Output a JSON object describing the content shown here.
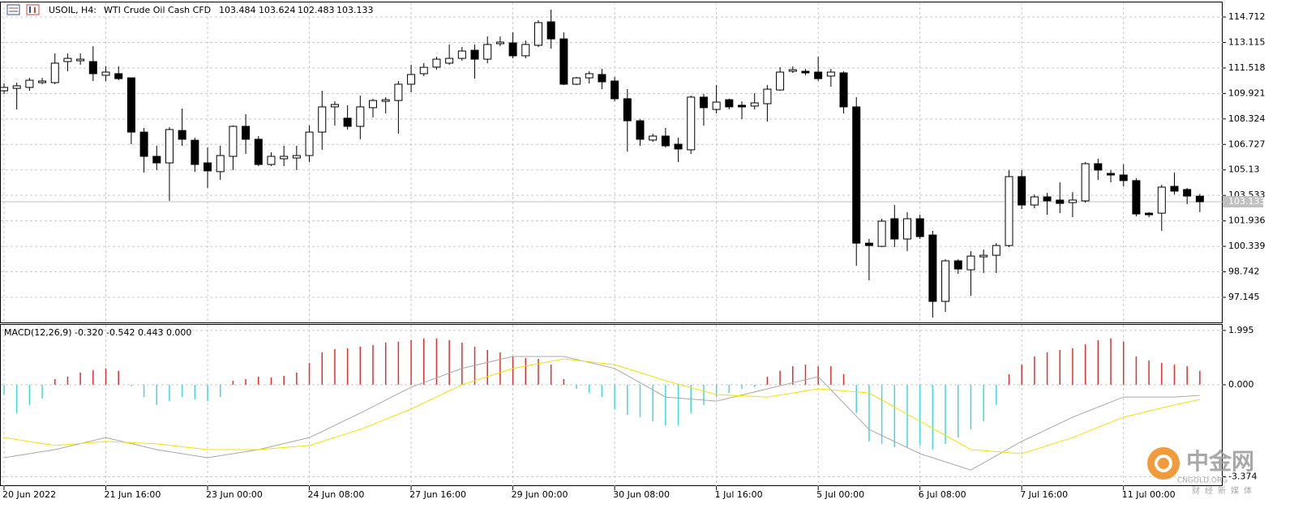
{
  "chart_data": [
    {
      "type": "candlestick",
      "symbol": "USOIL, H4:",
      "description": "WTI Crude Oil Cash CFD",
      "ylim": [
        95.571,
        115.626
      ],
      "yticks": [
        114.712,
        113.115,
        111.518,
        109.921,
        108.324,
        106.727,
        105.13,
        103.533,
        101.936,
        100.339,
        98.742,
        97.145
      ],
      "grid": true,
      "up_color": "#ffffff",
      "down_color": "#000000",
      "outline_color": "#000000",
      "last_price_line": true,
      "last_price_color": "#c0c0c0",
      "xticks": [
        {
          "value": 0,
          "label": "20 Jun 2022"
        },
        {
          "value": 8,
          "label": "21 Jun 16:00"
        },
        {
          "value": 16,
          "label": "23 Jun 00:00"
        },
        {
          "value": 24,
          "label": "24 Jun 08:00"
        },
        {
          "value": 32,
          "label": "27 Jun 16:00"
        },
        {
          "value": 40,
          "label": "29 Jun 00:00"
        },
        {
          "value": 48,
          "label": "30 Jun 08:00"
        },
        {
          "value": 56,
          "label": "1 Jul 16:00"
        },
        {
          "value": 64,
          "label": "5 Jul 00:00"
        },
        {
          "value": 72,
          "label": "6 Jul 08:00"
        },
        {
          "value": 80,
          "label": "7 Jul 16:00"
        },
        {
          "value": 88,
          "label": "11 Jul 00:00"
        }
      ],
      "open": [
        110.09,
        110.24,
        110.3,
        110.6,
        110.6,
        111.92,
        111.97,
        111.92,
        111.06,
        111.16,
        110.9,
        107.5,
        105.98,
        105.57,
        107.6,
        106.99,
        105.57,
        105.02,
        105.98,
        107.86,
        107.05,
        105.47,
        105.83,
        105.88,
        106.03,
        107.5,
        109.08,
        108.37,
        107.86,
        109.03,
        109.43,
        109.48,
        110.5,
        111.16,
        111.57,
        111.82,
        112.12,
        112.63,
        112.07,
        113.04,
        113.09,
        112.28,
        112.94,
        114.41,
        113.34,
        110.5,
        110.9,
        111.11,
        110.7,
        109.59,
        108.21,
        107.0,
        107.25,
        106.74,
        106.39,
        109.69,
        108.92,
        109.53,
        109.18,
        109.13,
        109.28,
        110.14,
        111.31,
        111.31,
        111.26,
        111.01,
        111.21,
        109.08,
        100.54,
        100.34,
        102.07,
        100.8,
        102.07,
        101.05,
        96.89,
        99.43,
        98.87,
        99.68,
        99.78,
        100.39,
        104.71,
        102.93,
        103.44,
        103.24,
        103.08,
        103.19,
        105.52,
        104.91,
        104.81,
        104.46,
        102.42,
        102.42,
        104.1,
        103.9,
        103.484
      ],
      "high": [
        110.55,
        110.6,
        110.9,
        110.9,
        112.43,
        112.43,
        112.43,
        112.89,
        111.62,
        111.62,
        110.9,
        107.76,
        106.64,
        107.81,
        108.98,
        107.15,
        106.54,
        106.64,
        107.91,
        108.62,
        107.25,
        106.23,
        106.64,
        106.64,
        107.91,
        110.09,
        109.43,
        109.18,
        109.79,
        109.59,
        109.69,
        110.7,
        111.72,
        111.82,
        112.22,
        112.99,
        112.83,
        112.99,
        113.49,
        113.49,
        113.75,
        113.24,
        114.51,
        115.17,
        113.75,
        110.96,
        111.31,
        111.46,
        110.96,
        110.19,
        108.31,
        107.4,
        107.76,
        107.15,
        109.79,
        109.89,
        110.45,
        109.59,
        109.43,
        109.94,
        110.45,
        111.56,
        111.62,
        111.46,
        112.22,
        111.46,
        111.31,
        109.69,
        100.8,
        102.07,
        102.93,
        102.48,
        102.32,
        101.31,
        99.53,
        99.53,
        100.04,
        100.14,
        100.54,
        105.12,
        105.12,
        103.59,
        103.69,
        104.35,
        103.74,
        105.62,
        105.83,
        105.12,
        105.47,
        104.61,
        102.48,
        104.2,
        104.96,
        104.0,
        103.624
      ],
      "low": [
        109.89,
        108.92,
        110.09,
        110.5,
        110.5,
        111.31,
        111.72,
        110.7,
        110.7,
        110.75,
        106.74,
        104.96,
        105.12,
        103.19,
        106.64,
        105.01,
        104.0,
        104.51,
        105.12,
        106.13,
        105.37,
        105.37,
        105.37,
        105.12,
        105.62,
        106.39,
        107.91,
        107.66,
        107.05,
        108.42,
        108.67,
        107.4,
        109.99,
        111.01,
        111.41,
        111.72,
        111.97,
        110.85,
        111.82,
        112.88,
        112.12,
        112.12,
        112.83,
        112.73,
        110.45,
        110.45,
        110.55,
        110.19,
        109.43,
        106.28,
        106.64,
        106.89,
        106.54,
        105.62,
        106.13,
        107.91,
        108.67,
        108.92,
        108.31,
        108.92,
        108.16,
        110.09,
        111.21,
        111.06,
        110.7,
        110.34,
        108.67,
        99.12,
        98.21,
        100.29,
        100.29,
        100.04,
        100.8,
        95.87,
        96.23,
        98.62,
        97.24,
        98.67,
        98.67,
        100.29,
        102.68,
        102.73,
        102.32,
        102.42,
        102.17,
        103.08,
        104.51,
        104.35,
        104.1,
        102.22,
        102.17,
        101.31,
        103.59,
        102.98,
        102.483
      ],
      "close": [
        110.3,
        110.4,
        110.75,
        110.7,
        111.82,
        112.12,
        112.07,
        111.16,
        111.26,
        110.85,
        107.5,
        105.98,
        105.57,
        107.66,
        107.05,
        105.47,
        105.07,
        106.03,
        107.86,
        107.05,
        105.47,
        105.98,
        105.98,
        106.03,
        107.5,
        109.08,
        109.23,
        107.86,
        109.08,
        109.48,
        109.53,
        110.5,
        111.11,
        111.56,
        112.07,
        112.12,
        112.58,
        112.07,
        112.99,
        113.14,
        112.28,
        112.99,
        114.36,
        113.34,
        110.5,
        110.9,
        111.16,
        110.65,
        109.59,
        108.21,
        107.05,
        107.25,
        106.64,
        106.44,
        109.69,
        109.03,
        109.38,
        109.08,
        109.08,
        109.33,
        110.19,
        111.26,
        111.41,
        111.21,
        110.85,
        111.26,
        109.08,
        100.54,
        100.39,
        101.92,
        100.8,
        102.07,
        100.95,
        96.89,
        99.43,
        98.92,
        99.73,
        99.78,
        100.39,
        104.71,
        102.93,
        103.44,
        103.19,
        103.03,
        103.24,
        105.52,
        105.12,
        104.81,
        104.46,
        102.37,
        102.32,
        104.05,
        103.8,
        103.49,
        103.133
      ]
    },
    {
      "type": "macd",
      "title": "MACD(12,26,9) -0.320 -0.542 0.443 0.000",
      "ylim": [
        -3.72,
        2.2
      ],
      "yticks": [
        1.995,
        {
          "value": 0,
          "label": "0.000"
        },
        -3.374
      ],
      "grid": true,
      "up_color": "#e82c2c",
      "down_color": "#3fd8e0",
      "values": [
        -0.36,
        -1.04,
        -0.74,
        -0.51,
        0.21,
        0.3,
        0.45,
        0.54,
        0.6,
        0.51,
        -0.06,
        -0.45,
        -0.74,
        -0.6,
        -0.45,
        -0.54,
        -0.6,
        -0.45,
        0.15,
        0.21,
        0.3,
        0.27,
        0.33,
        0.45,
        0.8,
        1.19,
        1.31,
        1.34,
        1.4,
        1.46,
        1.55,
        1.58,
        1.64,
        1.7,
        1.7,
        1.64,
        1.55,
        1.4,
        1.28,
        1.19,
        1.04,
        0.98,
        0.95,
        0.74,
        0.21,
        -0.15,
        -0.3,
        -0.45,
        -0.89,
        -1.1,
        -1.19,
        -1.34,
        -1.49,
        -1.49,
        -1.04,
        -0.74,
        -0.45,
        -0.3,
        -0.15,
        -0.09,
        0.3,
        0.51,
        0.68,
        0.74,
        0.68,
        0.68,
        0.39,
        -1.04,
        -2.08,
        -2.17,
        -2.29,
        -2.29,
        -2.23,
        -2.38,
        -2.17,
        -1.94,
        -1.64,
        -1.34,
        -0.74,
        0.39,
        0.74,
        1.04,
        1.19,
        1.28,
        1.34,
        1.49,
        1.64,
        1.7,
        1.58,
        1.04,
        0.89,
        0.8,
        0.74,
        0.68,
        0.51
      ],
      "lines": [
        {
          "color": "#a8a8a8",
          "x": [
            0,
            4,
            8,
            12,
            16,
            20,
            24,
            28,
            32,
            36,
            40,
            44,
            48,
            52,
            56,
            60,
            64,
            68,
            72,
            76,
            80,
            84,
            88,
            92,
            94
          ],
          "values": [
            -2.68,
            -2.38,
            -1.94,
            -2.38,
            -2.68,
            -2.38,
            -1.94,
            -1.04,
            -0.09,
            0.6,
            1.04,
            1.04,
            0.6,
            -0.45,
            -0.6,
            -0.15,
            0.3,
            -1.64,
            -2.53,
            -3.13,
            -2.08,
            -1.19,
            -0.45,
            -0.45,
            -0.39
          ]
        },
        {
          "color": "#f0e400",
          "x": [
            0,
            4,
            8,
            12,
            16,
            20,
            24,
            28,
            32,
            36,
            40,
            44,
            48,
            52,
            56,
            60,
            64,
            68,
            72,
            76,
            80,
            84,
            88,
            92,
            94
          ],
          "values": [
            -1.94,
            -2.23,
            -2.08,
            -2.17,
            -2.38,
            -2.38,
            -2.23,
            -1.64,
            -0.89,
            0,
            0.6,
            0.95,
            0.74,
            0.15,
            -0.36,
            -0.45,
            -0.15,
            -0.3,
            -1.34,
            -2.38,
            -2.53,
            -1.94,
            -1.19,
            -0.74,
            -0.54
          ]
        }
      ]
    }
  ],
  "watermark": {
    "name": "中金网",
    "domain": "CNGOLD.ORG",
    "slogan": "财经新媒体"
  }
}
